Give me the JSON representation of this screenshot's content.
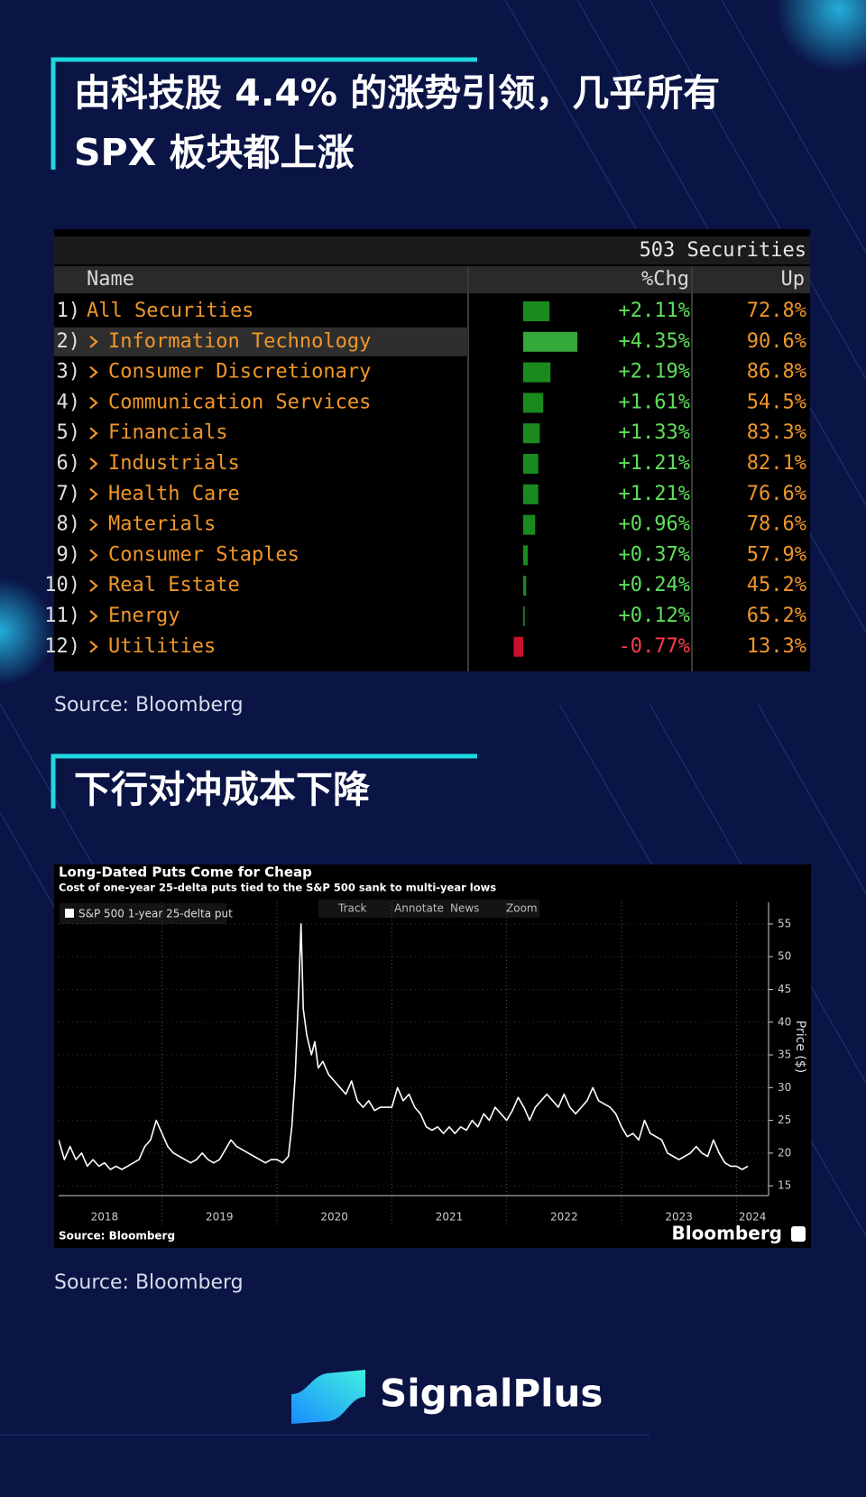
{
  "heading_1": [
    "由科技股 4.4% 的涨势引领，几乎所有",
    "SPX 板块都上涨"
  ],
  "table": {
    "count": "503 Securities",
    "columns": [
      "Name",
      "%Chg",
      "Up"
    ],
    "indices": [
      "1)",
      "2)",
      "3)",
      "4)",
      "5)",
      "6)",
      "7)",
      "8)",
      "9)",
      "10)",
      "11)",
      "12)"
    ],
    "names": [
      "All Securities",
      "Information Technology",
      "Consumer Discretionary",
      "Communication Services",
      "Financials",
      "Industrials",
      "Health Care",
      "Materials",
      "Consumer Staples",
      "Real Estate",
      "Energy",
      "Utilities"
    ],
    "values": [
      2.11,
      4.35,
      2.19,
      1.61,
      1.33,
      1.21,
      1.21,
      0.96,
      0.37,
      0.24,
      0.12,
      -0.77
    ],
    "value_labels": [
      "+2.11%",
      "+4.35%",
      "+2.19%",
      "+1.61%",
      "+1.33%",
      "+1.21%",
      "+1.21%",
      "+0.96%",
      "+0.37%",
      "+0.24%",
      "+0.12%",
      "-0.77%"
    ],
    "up": [
      "72.8%",
      "90.6%",
      "86.8%",
      "54.5%",
      "83.3%",
      "82.1%",
      "76.6%",
      "78.6%",
      "57.9%",
      "45.2%",
      "65.2%",
      "13.3%"
    ],
    "positive_color": "#1a8a1f",
    "negative_color": "#c8102e"
  },
  "source_1": "Source: Bloomberg",
  "heading_2": "下行对冲成本下降",
  "chart_data": {
    "type": "line",
    "title": "Long-Dated Puts Come for Cheap",
    "subtitle": "Cost of one-year 25-delta puts tied to the S&P 500 sank to multi-year lows",
    "toolbar": [
      "Track",
      "Annotate",
      "News",
      "Zoom"
    ],
    "ylabel": "Price ($)",
    "source": "Source: Bloomberg",
    "logo": "Bloomberg",
    "x": [
      2018.1,
      2018.15,
      2018.2,
      2018.25,
      2018.3,
      2018.35,
      2018.4,
      2018.45,
      2018.5,
      2018.55,
      2018.6,
      2018.65,
      2018.7,
      2018.75,
      2018.8,
      2018.85,
      2018.9,
      2018.95,
      2019,
      2019.05,
      2019.1,
      2019.15,
      2019.2,
      2019.25,
      2019.3,
      2019.35,
      2019.4,
      2019.45,
      2019.5,
      2019.55,
      2019.6,
      2019.65,
      2019.7,
      2019.75,
      2019.8,
      2019.85,
      2019.9,
      2019.95,
      2020,
      2020.05,
      2020.1,
      2020.13,
      2020.16,
      2020.19,
      2020.21,
      2020.23,
      2020.26,
      2020.3,
      2020.33,
      2020.36,
      2020.4,
      2020.45,
      2020.5,
      2020.55,
      2020.6,
      2020.65,
      2020.7,
      2020.75,
      2020.8,
      2020.85,
      2020.9,
      2020.95,
      2021,
      2021.05,
      2021.1,
      2021.15,
      2021.2,
      2021.25,
      2021.3,
      2021.35,
      2021.4,
      2021.45,
      2021.5,
      2021.55,
      2021.6,
      2021.65,
      2021.7,
      2021.75,
      2021.8,
      2021.85,
      2021.9,
      2021.95,
      2022,
      2022.05,
      2022.1,
      2022.15,
      2022.2,
      2022.25,
      2022.3,
      2022.35,
      2022.4,
      2022.45,
      2022.5,
      2022.55,
      2022.6,
      2022.65,
      2022.7,
      2022.75,
      2022.8,
      2022.85,
      2022.9,
      2022.95,
      2023,
      2023.05,
      2023.1,
      2023.15,
      2023.2,
      2023.25,
      2023.3,
      2023.35,
      2023.4,
      2023.45,
      2023.5,
      2023.55,
      2023.6,
      2023.65,
      2023.7,
      2023.75,
      2023.8,
      2023.85,
      2023.9,
      2023.95,
      2024,
      2024.05,
      2024.1
    ],
    "series": [
      {
        "name": "S&P 500 1-year 25-delta put",
        "color": "#ffffff",
        "values": [
          22,
          19,
          21,
          19,
          20,
          18,
          19,
          18,
          18.5,
          17.5,
          18,
          17.5,
          18,
          18.5,
          19,
          21,
          22,
          25,
          23,
          21,
          20,
          19.5,
          19,
          18.5,
          19,
          20,
          19,
          18.5,
          19,
          20.5,
          22,
          21,
          20.5,
          20,
          19.5,
          19,
          18.5,
          19,
          19,
          18.5,
          19.5,
          24,
          32,
          45,
          55,
          42,
          38,
          35,
          37,
          33,
          34,
          32,
          31,
          30,
          29,
          31,
          28,
          27,
          28,
          26.5,
          27,
          27,
          27,
          30,
          28,
          29,
          27,
          26,
          24,
          23.5,
          24,
          23,
          24,
          23,
          24,
          23.5,
          25,
          24,
          26,
          25,
          27,
          26,
          25,
          26.5,
          28.5,
          27,
          25,
          27,
          28,
          29,
          28,
          27,
          29,
          27,
          26,
          27,
          28,
          30,
          28,
          27.5,
          27,
          26,
          24,
          22.5,
          23,
          22,
          25,
          23,
          22.5,
          22,
          20,
          19.5,
          19,
          19.5,
          20,
          21,
          20,
          19.5,
          22,
          20,
          18.5,
          18,
          18,
          17.5,
          18
        ]
      }
    ],
    "xlim": [
      2018.1,
      2024.28
    ],
    "ylim": [
      13.5,
      58.3
    ],
    "xticks": [
      {
        "value": 2018.5,
        "label": "2018"
      },
      {
        "value": 2019.5,
        "label": "2019"
      },
      {
        "value": 2020.5,
        "label": "2020"
      },
      {
        "value": 2021.5,
        "label": "2021"
      },
      {
        "value": 2022.5,
        "label": "2022"
      },
      {
        "value": 2023.5,
        "label": "2023"
      },
      {
        "value": 2024.14,
        "label": "2024"
      }
    ],
    "xgrid": [
      2019,
      2020,
      2021,
      2022,
      2023,
      2024
    ],
    "yticks": [
      15,
      20,
      25,
      30,
      35,
      40,
      45,
      50,
      55
    ],
    "grid": true
  },
  "source_2": "Source: Bloomberg",
  "brand": "SignalPlus"
}
